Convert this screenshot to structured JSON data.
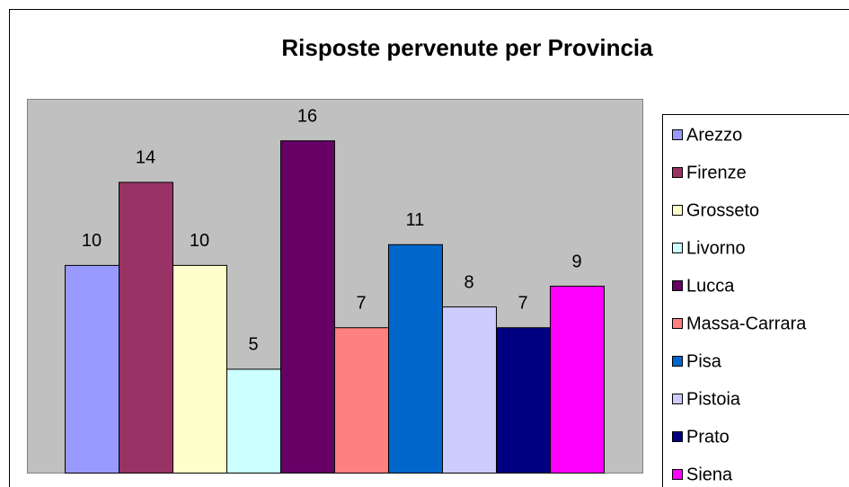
{
  "chart_data": {
    "type": "bar",
    "title": "Risposte pervenute per Provincia",
    "categories": [
      "Arezzo",
      "Firenze",
      "Grosseto",
      "Livorno",
      "Lucca",
      "Massa-Carrara",
      "Pisa",
      "Pistoia",
      "Prato",
      "Siena"
    ],
    "values": [
      10,
      14,
      10,
      5,
      16,
      7,
      11,
      8,
      7,
      9
    ],
    "colors": [
      "#9999ff",
      "#993366",
      "#ffffcc",
      "#ccffff",
      "#660066",
      "#ff8080",
      "#0066cc",
      "#ccccff",
      "#000080",
      "#ff00ff"
    ],
    "ylim": [
      0,
      18
    ],
    "legend": "right"
  }
}
